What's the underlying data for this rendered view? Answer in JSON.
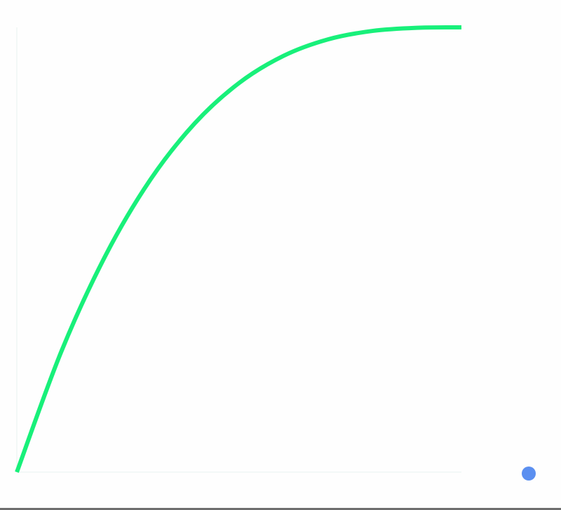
{
  "chart_data": {
    "type": "line",
    "title": "",
    "xlabel": "",
    "ylabel": "",
    "xlim": [
      0,
      1
    ],
    "ylim": [
      0,
      1
    ],
    "grid": false,
    "legend": "none",
    "series": [
      {
        "color": "#18f07a",
        "x": [
          0,
          0.1,
          0.2,
          0.3,
          0.4,
          0.5,
          0.6,
          0.7,
          0.8,
          0.9,
          1.0
        ],
        "y": [
          0,
          0.271,
          0.488,
          0.657,
          0.784,
          0.875,
          0.936,
          0.973,
          0.992,
          0.999,
          1.0
        ]
      }
    ]
  },
  "colors": {
    "axis": "#e8f3f0",
    "marker": "#5b8ff0",
    "divider": "#6e6e6e"
  }
}
